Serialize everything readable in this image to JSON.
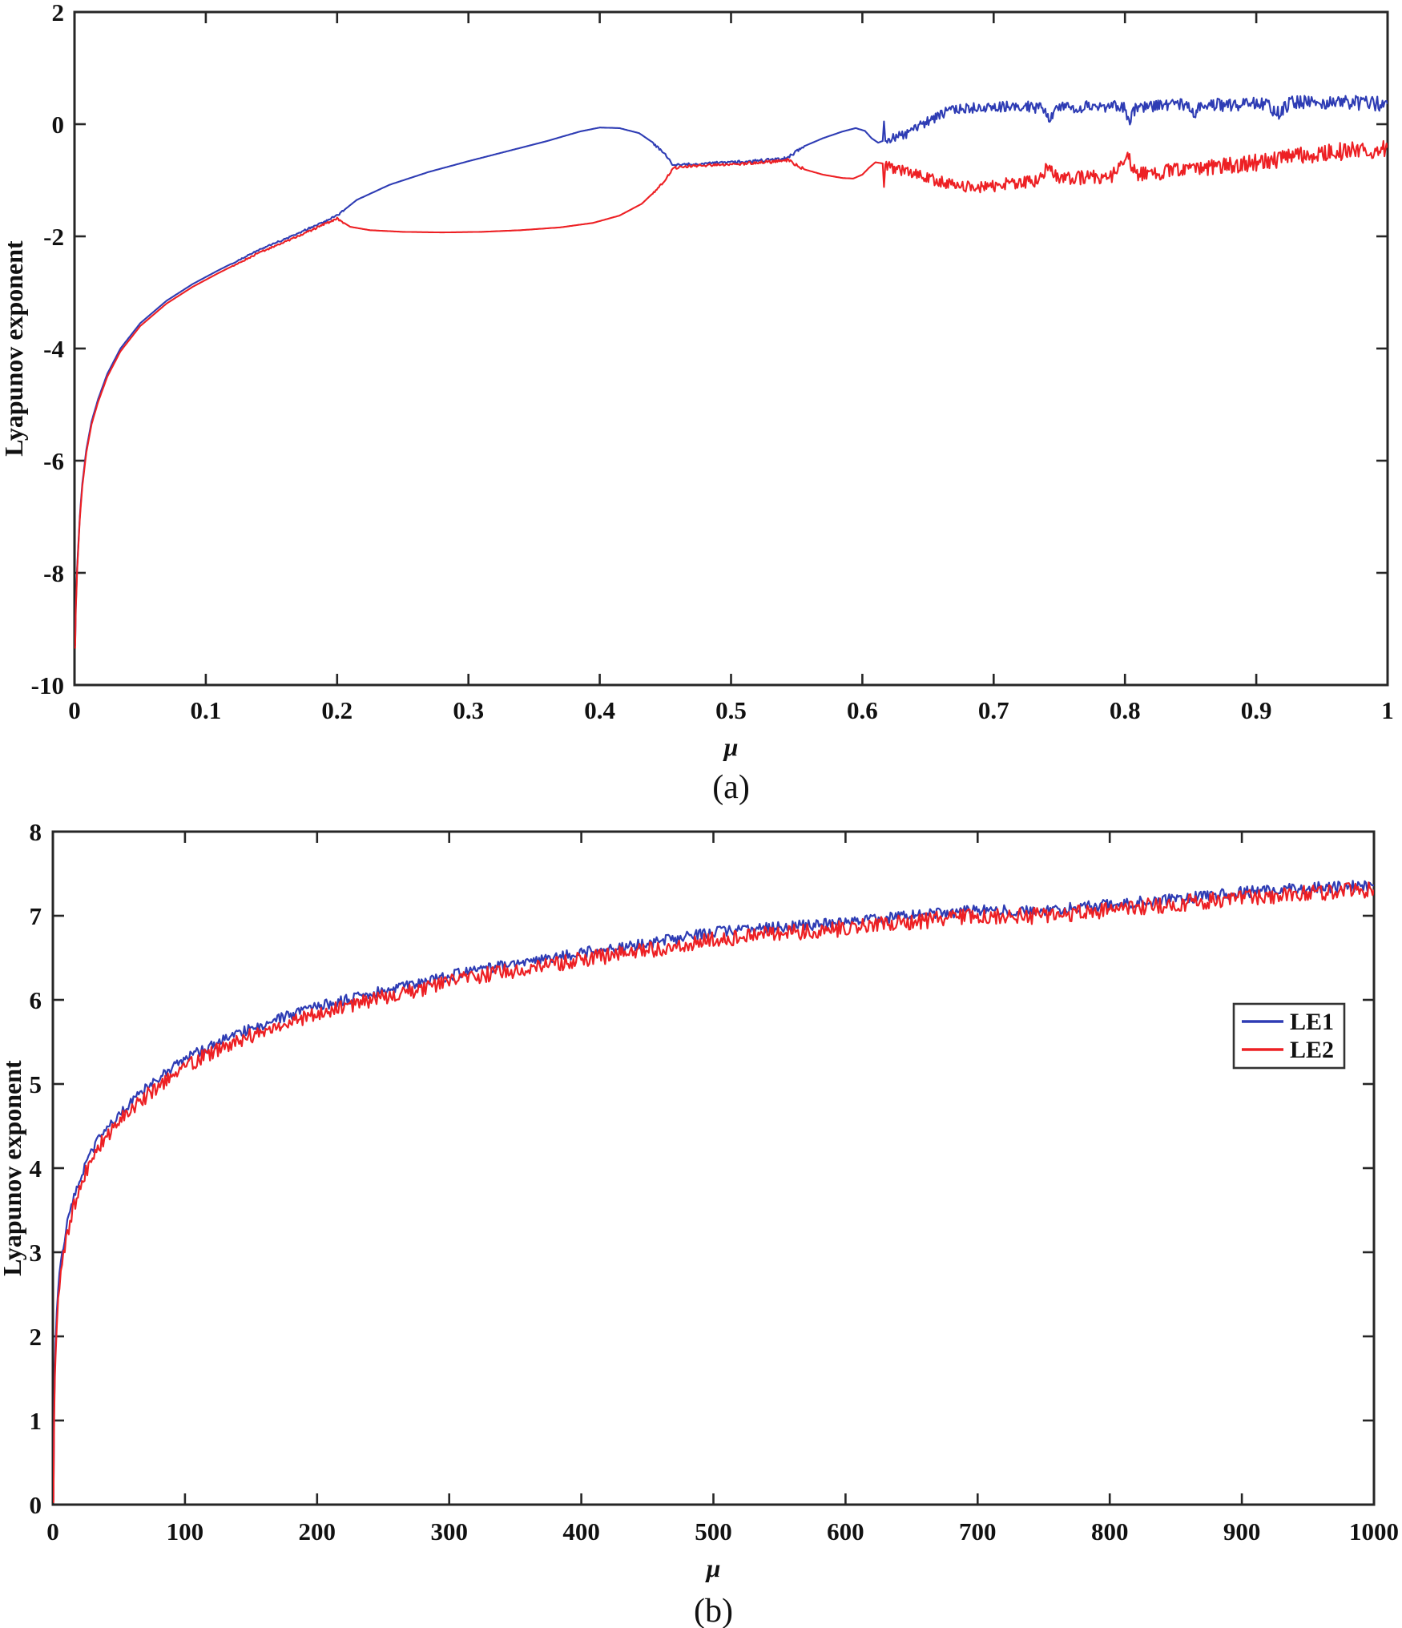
{
  "figure": {
    "background": "#ffffff",
    "axis_color": "#262626",
    "text_color": "#111111",
    "series_colors": {
      "LE1": "#2e3cb4",
      "LE2": "#ed2024"
    }
  },
  "chart_data": [
    {
      "id": "chart-a",
      "type": "line",
      "caption": "(a)",
      "xlabel": "μ",
      "ylabel": "Lyapunov exponent",
      "xlim": [
        0,
        1
      ],
      "ylim": [
        -10,
        2
      ],
      "xticks": [
        0,
        0.1,
        0.2,
        0.3,
        0.4,
        0.5,
        0.6,
        0.7,
        0.8,
        0.9,
        1
      ],
      "xtick_labels": [
        "0",
        "0.1",
        "0.2",
        "0.3",
        "0.4",
        "0.5",
        "0.6",
        "0.7",
        "0.8",
        "0.9",
        "1"
      ],
      "yticks": [
        2,
        0,
        -2,
        -4,
        -6,
        -8,
        -10
      ],
      "ytick_labels": [
        "2",
        "0",
        "-2",
        "-4",
        "-6",
        "-8",
        "-10"
      ],
      "grid": false,
      "legend": null,
      "sample_step": 0.0008,
      "series": [
        {
          "name": "LE1",
          "color": "#2e3cb4",
          "width": 2.1,
          "seed": 41,
          "noise_zones": [
            [
              0.12,
              0.205,
              0.012,
              0.02
            ],
            [
              0.44,
              0.555,
              0.02,
              0.03
            ],
            [
              0.618,
              1.0,
              0.09,
              0.13
            ]
          ],
          "keypoints": [
            [
              0.0005,
              -9.3
            ],
            [
              0.001,
              -8.6
            ],
            [
              0.002,
              -7.9
            ],
            [
              0.004,
              -7.0
            ],
            [
              0.006,
              -6.4
            ],
            [
              0.009,
              -5.8
            ],
            [
              0.013,
              -5.3
            ],
            [
              0.018,
              -4.9
            ],
            [
              0.025,
              -4.45
            ],
            [
              0.035,
              -4.0
            ],
            [
              0.05,
              -3.55
            ],
            [
              0.07,
              -3.15
            ],
            [
              0.09,
              -2.85
            ],
            [
              0.11,
              -2.6
            ],
            [
              0.14,
              -2.25
            ],
            [
              0.17,
              -1.95
            ],
            [
              0.2,
              -1.63
            ],
            [
              0.215,
              -1.35
            ],
            [
              0.24,
              -1.08
            ],
            [
              0.27,
              -0.85
            ],
            [
              0.3,
              -0.66
            ],
            [
              0.33,
              -0.48
            ],
            [
              0.36,
              -0.3
            ],
            [
              0.385,
              -0.13
            ],
            [
              0.4,
              -0.06
            ],
            [
              0.415,
              -0.07
            ],
            [
              0.43,
              -0.16
            ],
            [
              0.44,
              -0.32
            ],
            [
              0.45,
              -0.55
            ],
            [
              0.456,
              -0.73
            ],
            [
              0.47,
              -0.71
            ],
            [
              0.49,
              -0.69
            ],
            [
              0.51,
              -0.67
            ],
            [
              0.53,
              -0.64
            ],
            [
              0.543,
              -0.6
            ],
            [
              0.555,
              -0.4
            ],
            [
              0.57,
              -0.25
            ],
            [
              0.585,
              -0.13
            ],
            [
              0.595,
              -0.07
            ],
            [
              0.602,
              -0.12
            ],
            [
              0.607,
              -0.25
            ],
            [
              0.612,
              -0.33
            ],
            [
              0.6155,
              -0.3
            ],
            [
              0.6165,
              0.05
            ],
            [
              0.6175,
              -0.3
            ],
            [
              0.625,
              -0.24
            ],
            [
              0.635,
              -0.15
            ],
            [
              0.645,
              -0.02
            ],
            [
              0.655,
              0.12
            ],
            [
              0.665,
              0.22
            ],
            [
              0.68,
              0.28
            ],
            [
              0.7,
              0.31
            ],
            [
              0.72,
              0.32
            ],
            [
              0.738,
              0.28
            ],
            [
              0.742,
              0.05
            ],
            [
              0.747,
              0.28
            ],
            [
              0.77,
              0.31
            ],
            [
              0.8,
              0.32
            ],
            [
              0.803,
              0.02
            ],
            [
              0.808,
              0.3
            ],
            [
              0.83,
              0.33
            ],
            [
              0.85,
              0.34
            ],
            [
              0.853,
              0.12
            ],
            [
              0.857,
              0.33
            ],
            [
              0.88,
              0.35
            ],
            [
              0.905,
              0.37
            ],
            [
              0.918,
              0.18
            ],
            [
              0.925,
              0.38
            ],
            [
              0.95,
              0.4
            ],
            [
              0.975,
              0.38
            ],
            [
              1.0,
              0.36
            ]
          ]
        },
        {
          "name": "LE2",
          "color": "#ed2024",
          "width": 2.1,
          "seed": 97,
          "noise_zones": [
            [
              0.12,
              0.205,
              0.012,
              0.02
            ],
            [
              0.44,
              0.555,
              0.02,
              0.03
            ],
            [
              0.618,
              1.0,
              0.09,
              0.17
            ]
          ],
          "keypoints": [
            [
              0.0005,
              -9.35
            ],
            [
              0.001,
              -8.65
            ],
            [
              0.002,
              -7.95
            ],
            [
              0.004,
              -7.05
            ],
            [
              0.006,
              -6.45
            ],
            [
              0.009,
              -5.85
            ],
            [
              0.013,
              -5.35
            ],
            [
              0.018,
              -4.95
            ],
            [
              0.025,
              -4.5
            ],
            [
              0.035,
              -4.05
            ],
            [
              0.05,
              -3.6
            ],
            [
              0.07,
              -3.2
            ],
            [
              0.09,
              -2.9
            ],
            [
              0.11,
              -2.65
            ],
            [
              0.14,
              -2.3
            ],
            [
              0.17,
              -2.0
            ],
            [
              0.2,
              -1.68
            ],
            [
              0.21,
              -1.83
            ],
            [
              0.225,
              -1.89
            ],
            [
              0.25,
              -1.92
            ],
            [
              0.28,
              -1.93
            ],
            [
              0.31,
              -1.92
            ],
            [
              0.34,
              -1.89
            ],
            [
              0.37,
              -1.84
            ],
            [
              0.395,
              -1.76
            ],
            [
              0.415,
              -1.63
            ],
            [
              0.432,
              -1.42
            ],
            [
              0.445,
              -1.13
            ],
            [
              0.452,
              -0.92
            ],
            [
              0.456,
              -0.78
            ],
            [
              0.47,
              -0.745
            ],
            [
              0.49,
              -0.72
            ],
            [
              0.51,
              -0.7
            ],
            [
              0.53,
              -0.67
            ],
            [
              0.543,
              -0.64
            ],
            [
              0.555,
              -0.8
            ],
            [
              0.57,
              -0.9
            ],
            [
              0.585,
              -0.96
            ],
            [
              0.593,
              -0.97
            ],
            [
              0.6,
              -0.9
            ],
            [
              0.605,
              -0.78
            ],
            [
              0.61,
              -0.68
            ],
            [
              0.6155,
              -0.7
            ],
            [
              0.6165,
              -1.12
            ],
            [
              0.6175,
              -0.72
            ],
            [
              0.625,
              -0.8
            ],
            [
              0.64,
              -0.88
            ],
            [
              0.655,
              -1.0
            ],
            [
              0.67,
              -1.08
            ],
            [
              0.685,
              -1.12
            ],
            [
              0.7,
              -1.1
            ],
            [
              0.715,
              -1.05
            ],
            [
              0.735,
              -1.0
            ],
            [
              0.742,
              -0.72
            ],
            [
              0.75,
              -0.98
            ],
            [
              0.77,
              -0.95
            ],
            [
              0.79,
              -0.92
            ],
            [
              0.802,
              -0.6
            ],
            [
              0.81,
              -0.9
            ],
            [
              0.83,
              -0.85
            ],
            [
              0.85,
              -0.8
            ],
            [
              0.87,
              -0.76
            ],
            [
              0.89,
              -0.72
            ],
            [
              0.91,
              -0.65
            ],
            [
              0.93,
              -0.58
            ],
            [
              0.95,
              -0.52
            ],
            [
              0.97,
              -0.48
            ],
            [
              1.0,
              -0.42
            ]
          ]
        }
      ]
    },
    {
      "id": "chart-b",
      "type": "line",
      "caption": "(b)",
      "xlabel": "μ",
      "ylabel": "Lyapunov exponent",
      "xlim": [
        0,
        1000
      ],
      "ylim": [
        0,
        8
      ],
      "xticks": [
        0,
        100,
        200,
        300,
        400,
        500,
        600,
        700,
        800,
        900,
        1000
      ],
      "xtick_labels": [
        "0",
        "100",
        "200",
        "300",
        "400",
        "500",
        "600",
        "700",
        "800",
        "900",
        "1000"
      ],
      "yticks": [
        8,
        7,
        6,
        5,
        4,
        3,
        2,
        1,
        0
      ],
      "ytick_labels": [
        "8",
        "7",
        "6",
        "5",
        "4",
        "3",
        "2",
        "1",
        "0"
      ],
      "grid": false,
      "legend": {
        "entries": [
          {
            "label": "LE1",
            "color": "#2e3cb4"
          },
          {
            "label": "LE2",
            "color": "#ed2024"
          }
        ]
      },
      "sample_step": 1.0,
      "series": [
        {
          "name": "LE1",
          "color": "#2e3cb4",
          "width": 2.2,
          "seed": 13,
          "noise_zones": [
            [
              2,
              1000,
              0.06,
              0.07
            ]
          ],
          "keypoints": [
            [
              0.4,
              0.05
            ],
            [
              1,
              1.15
            ],
            [
              1.5,
              1.62
            ],
            [
              2,
              1.92
            ],
            [
              3,
              2.28
            ],
            [
              4,
              2.52
            ],
            [
              6,
              2.88
            ],
            [
              8,
              3.1
            ],
            [
              10,
              3.27
            ],
            [
              14,
              3.53
            ],
            [
              18,
              3.76
            ],
            [
              25,
              4.06
            ],
            [
              32,
              4.28
            ],
            [
              40,
              4.46
            ],
            [
              50,
              4.65
            ],
            [
              65,
              4.87
            ],
            [
              80,
              5.07
            ],
            [
              100,
              5.3
            ],
            [
              120,
              5.46
            ],
            [
              140,
              5.6
            ],
            [
              170,
              5.77
            ],
            [
              200,
              5.92
            ],
            [
              240,
              6.07
            ],
            [
              280,
              6.21
            ],
            [
              320,
              6.36
            ],
            [
              360,
              6.46
            ],
            [
              400,
              6.56
            ],
            [
              450,
              6.67
            ],
            [
              500,
              6.8
            ],
            [
              550,
              6.87
            ],
            [
              600,
              6.92
            ],
            [
              650,
              7.0
            ],
            [
              700,
              7.06
            ],
            [
              750,
              7.06
            ],
            [
              800,
              7.13
            ],
            [
              850,
              7.2
            ],
            [
              900,
              7.28
            ],
            [
              950,
              7.33
            ],
            [
              1000,
              7.36
            ]
          ]
        },
        {
          "name": "LE2",
          "color": "#ed2024",
          "width": 2.2,
          "seed": 71,
          "noise_zones": [
            [
              2,
              1000,
              0.09,
              0.1
            ]
          ],
          "keypoints": [
            [
              0.4,
              0.02
            ],
            [
              1,
              1.05
            ],
            [
              1.5,
              1.52
            ],
            [
              2,
              1.83
            ],
            [
              3,
              2.18
            ],
            [
              4,
              2.43
            ],
            [
              6,
              2.79
            ],
            [
              8,
              3.0
            ],
            [
              10,
              3.17
            ],
            [
              14,
              3.43
            ],
            [
              18,
              3.66
            ],
            [
              25,
              3.96
            ],
            [
              32,
              4.19
            ],
            [
              40,
              4.37
            ],
            [
              50,
              4.56
            ],
            [
              65,
              4.78
            ],
            [
              80,
              4.98
            ],
            [
              100,
              5.21
            ],
            [
              120,
              5.37
            ],
            [
              140,
              5.52
            ],
            [
              170,
              5.68
            ],
            [
              200,
              5.84
            ],
            [
              240,
              5.99
            ],
            [
              280,
              6.13
            ],
            [
              320,
              6.28
            ],
            [
              360,
              6.38
            ],
            [
              400,
              6.48
            ],
            [
              450,
              6.59
            ],
            [
              500,
              6.72
            ],
            [
              550,
              6.79
            ],
            [
              600,
              6.85
            ],
            [
              650,
              6.93
            ],
            [
              700,
              6.99
            ],
            [
              750,
              7.0
            ],
            [
              800,
              7.07
            ],
            [
              850,
              7.14
            ],
            [
              900,
              7.22
            ],
            [
              950,
              7.27
            ],
            [
              1000,
              7.31
            ]
          ]
        }
      ]
    }
  ]
}
